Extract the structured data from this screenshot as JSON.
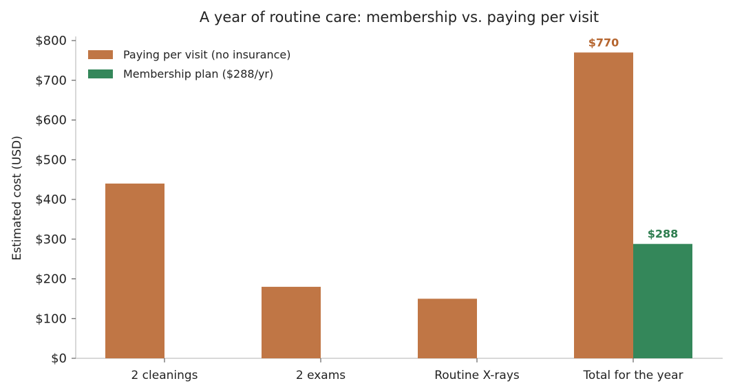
{
  "chart_data": {
    "type": "bar",
    "title": "A year of routine care: membership vs. paying per visit",
    "xlabel": "",
    "ylabel": "Estimated cost (USD)",
    "categories": [
      "2 cleanings",
      "2 exams",
      "Routine X-rays",
      "Total for the year"
    ],
    "series": [
      {
        "name": "Paying per visit (no insurance)",
        "color": "#c07645",
        "values": [
          440,
          180,
          150,
          770
        ],
        "data_labels": [
          null,
          null,
          null,
          "$770"
        ]
      },
      {
        "name": "Membership plan ($288/yr)",
        "color": "#34875a",
        "values": [
          0,
          0,
          0,
          288
        ],
        "data_labels": [
          null,
          null,
          null,
          "$288"
        ]
      }
    ],
    "ylim": [
      0,
      800
    ],
    "yticks": [
      0,
      100,
      200,
      300,
      400,
      500,
      600,
      700,
      800
    ],
    "ytick_labels": [
      "$0",
      "$100",
      "$200",
      "$300",
      "$400",
      "$500",
      "$600",
      "$700",
      "$800"
    ],
    "legend_position": "top-left",
    "grid": false,
    "label_colors": {
      "series_1": "#b5652f",
      "series_2": "#2e7d4f"
    }
  }
}
